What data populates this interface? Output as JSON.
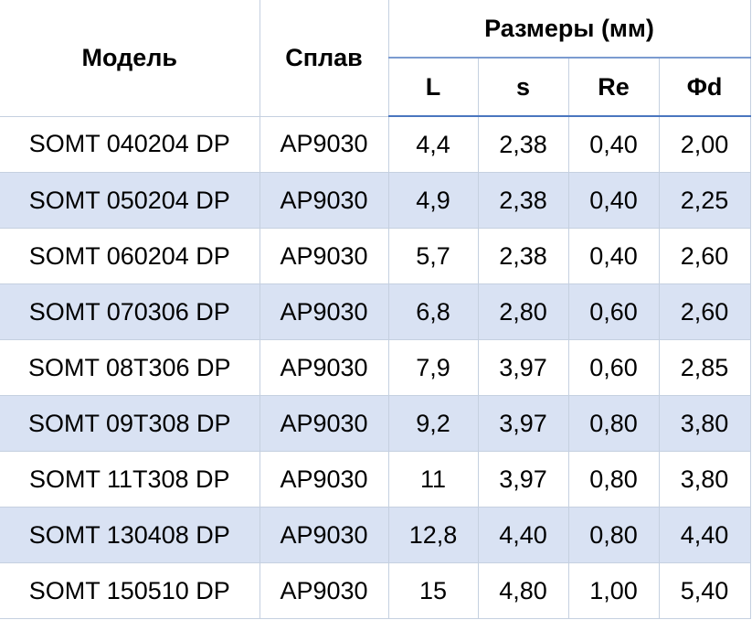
{
  "table": {
    "header": {
      "model": "Модель",
      "alloy": "Сплав",
      "dimensions": "Размеры (мм)",
      "columns": [
        "L",
        "s",
        "Re",
        "Φd"
      ]
    },
    "rows": [
      [
        "SOMT 040204 DP",
        "AP9030",
        "4,4",
        "2,38",
        "0,40",
        "2,00"
      ],
      [
        "SOMT 050204 DP",
        "AP9030",
        "4,9",
        "2,38",
        "0,40",
        "2,25"
      ],
      [
        "SOMT 060204 DP",
        "AP9030",
        "5,7",
        "2,38",
        "0,40",
        "2,60"
      ],
      [
        "SOMT 070306 DP",
        "AP9030",
        "6,8",
        "2,80",
        "0,60",
        "2,60"
      ],
      [
        "SOMT 08T306 DP",
        "AP9030",
        "7,9",
        "3,97",
        "0,60",
        "2,85"
      ],
      [
        "SOMT 09T308 DP",
        "AP9030",
        "9,2",
        "3,97",
        "0,80",
        "3,80"
      ],
      [
        "SOMT 11T308 DP",
        "AP9030",
        "11",
        "3,97",
        "0,80",
        "3,80"
      ],
      [
        "SOMT 130408 DP",
        "AP9030",
        "12,8",
        "4,40",
        "0,80",
        "4,40"
      ],
      [
        "SOMT 150510 DP",
        "AP9030",
        "15",
        "4,80",
        "1,00",
        "5,40"
      ]
    ]
  }
}
